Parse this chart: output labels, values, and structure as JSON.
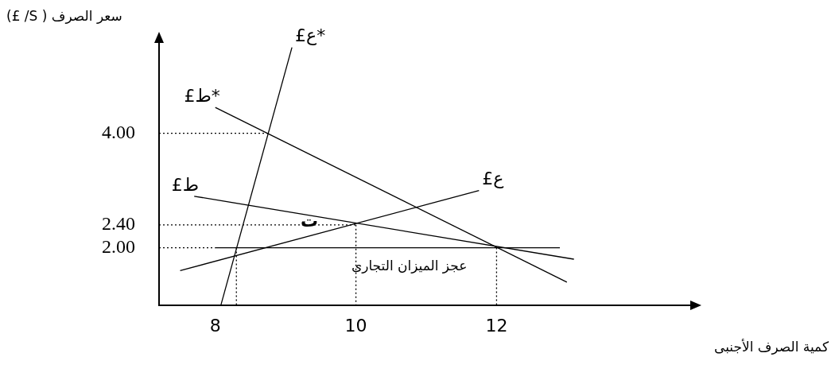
{
  "chart_data": {
    "type": "line",
    "xlabel": "كمية الصرف الأجنبى",
    "ylabel": "سعر الصرف ( S/ £)",
    "xlim": [
      7.2,
      14.8
    ],
    "ylim": [
      1,
      5.6
    ],
    "xticks": [
      8,
      10,
      12
    ],
    "yticks": [
      {
        "value": 2,
        "label": "2.00"
      },
      {
        "value": 2.4,
        "label": "2.40"
      },
      {
        "value": 4,
        "label": "4.00"
      }
    ],
    "grid": false,
    "legend": false,
    "marker": "none",
    "series": [
      {
        "name": "£ع",
        "color": "#000000",
        "x": [
          7.5,
          11.75
        ],
        "values": [
          1.6,
          3.0
        ]
      },
      {
        "name": "£ط",
        "color": "#000000",
        "x": [
          7.7,
          13.1
        ],
        "values": [
          2.9,
          1.8
        ]
      },
      {
        "name": "£ط*",
        "color": "#000000",
        "x": [
          8.0,
          13.0
        ],
        "values": [
          4.45,
          1.4
        ]
      },
      {
        "name": "£ع*",
        "color": "#000000",
        "x": [
          8.08,
          9.09
        ],
        "values": [
          1.0,
          5.5
        ]
      },
      {
        "color": "#000000",
        "x": [
          8.0,
          12.9
        ],
        "values": [
          2.0,
          2.0
        ]
      },
      {
        "color": "#000000",
        "line_style": "dotted",
        "x": [
          7.2,
          8.75
        ],
        "values": [
          4.0,
          4.0
        ]
      },
      {
        "color": "#000000",
        "line_style": "dotted",
        "x": [
          7.2,
          10
        ],
        "values": [
          2.4,
          2.4
        ]
      },
      {
        "color": "#000000",
        "line_style": "dotted",
        "x": [
          10,
          10
        ],
        "values": [
          2.4,
          1
        ]
      },
      {
        "color": "#000000",
        "line_style": "dotted",
        "x": [
          12,
          12
        ],
        "values": [
          2.0,
          1
        ]
      },
      {
        "color": "#000000",
        "line_style": "dotted",
        "x": [
          8.3,
          8.3
        ],
        "values": [
          2.0,
          1
        ]
      },
      {
        "color": "#000000",
        "line_style": "dotted",
        "x": [
          7.2,
          8.0
        ],
        "values": [
          2.0,
          2.0
        ]
      }
    ],
    "annotations": [
      "ت",
      "عجز الميزان التجارى"
    ]
  }
}
